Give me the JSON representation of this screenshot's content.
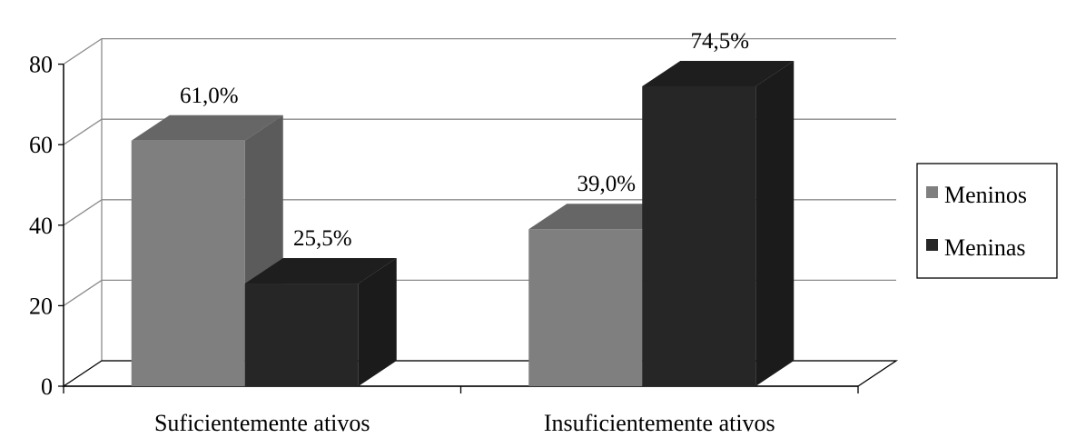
{
  "chart_data": {
    "type": "bar",
    "style": "3d-clustered-column",
    "categories": [
      "Suficientemente ativos",
      "Insuficientemente ativos"
    ],
    "series": [
      {
        "name": "Meninos",
        "values": [
          61.0,
          39.0
        ],
        "labels": [
          "61,0%",
          "39,0%"
        ],
        "color": "#7f7f7f"
      },
      {
        "name": "Meninas",
        "values": [
          25.5,
          74.5
        ],
        "labels": [
          "25,5%",
          "74,5%"
        ],
        "color": "#262626"
      }
    ],
    "yticks": [
      "0",
      "20",
      "40",
      "60",
      "80"
    ],
    "ylim": [
      0,
      80
    ],
    "grid": true,
    "legend": "right",
    "title": "",
    "xlabel": "",
    "ylabel": ""
  }
}
